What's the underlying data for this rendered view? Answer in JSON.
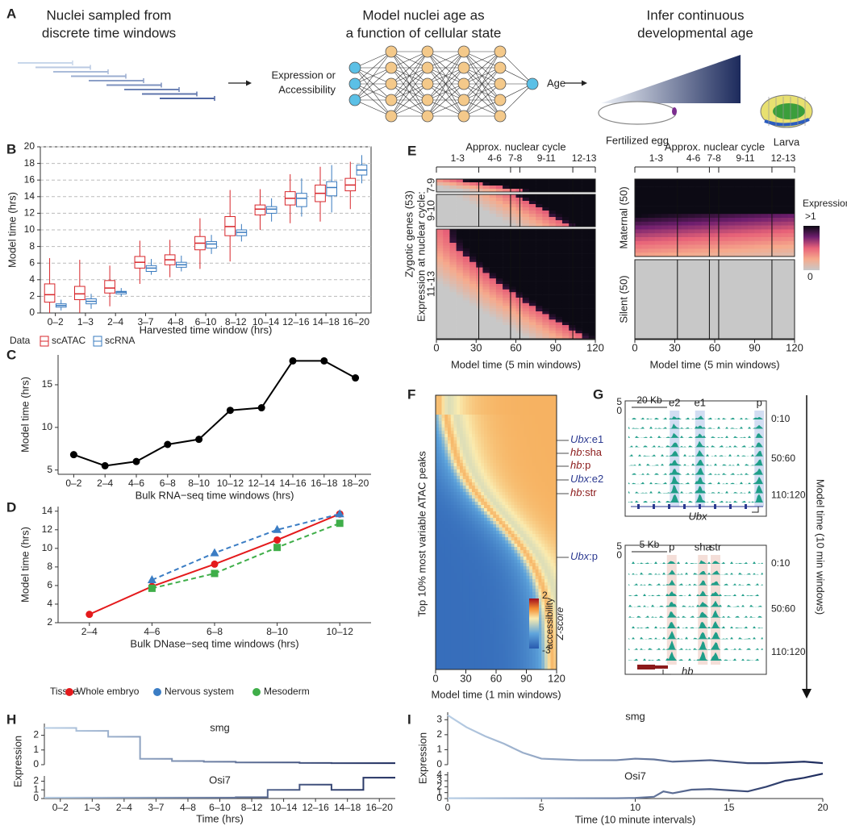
{
  "panel_labels": [
    "A",
    "B",
    "C",
    "D",
    "E",
    "F",
    "G",
    "H",
    "I"
  ],
  "panel_a": {
    "sampling_title": [
      "Nuclei sampled from",
      "discrete time windows"
    ],
    "model_title": [
      "Model nuclei age as",
      "a function of cellular state"
    ],
    "infer_title": [
      "Infer continuous",
      "developmental age"
    ],
    "input_label": [
      "Expression or",
      "Accessibility"
    ],
    "output_label": "Age",
    "start_label": "Fertilized egg",
    "end_label": "Larva"
  },
  "panel_e": {
    "axis_title": "Approx. nuclear cycle",
    "cycles": [
      "1-3",
      "4-6",
      "7-8",
      "9-11",
      "12-13"
    ],
    "cycle_bounds": [
      0,
      32,
      56,
      63,
      103,
      120
    ],
    "zygotic_label": "Zygotic genes (53)",
    "cycle_label": "Expression at nuclear cycle:",
    "zygotic_groups": [
      "7-9",
      "9-10",
      "11-13"
    ],
    "other_groups": [
      "Maternal (50)",
      "Silent (50)"
    ],
    "xlim": [
      0,
      120
    ],
    "xticks": [
      0,
      30,
      60,
      90,
      120
    ],
    "x_label": "Model time (5 min windows)",
    "legend_title": "Expression",
    "legend_max": ">1",
    "legend_min": 0
  },
  "panel_f": {
    "y_label": "Top 10% most variable ATAC peaks",
    "xlim": [
      0,
      120
    ],
    "xticks": [
      0,
      30,
      60,
      90,
      120
    ],
    "x_label": "Model time (1 min windows)",
    "legend_max": 2,
    "legend_min": -3,
    "legend_title": [
      "accessibility",
      "Z-score"
    ],
    "peaks": [
      {
        "gene": "Ubx",
        "element": ":e1"
      },
      {
        "gene": "hb",
        "element": ":sha"
      },
      {
        "gene": "hb",
        "element": ":p"
      },
      {
        "gene": "Ubx",
        "element": ":e2"
      },
      {
        "gene": "hb",
        "element": ":str"
      },
      {
        "gene": "Ubx",
        "element": ":p"
      }
    ]
  },
  "panel_g": {
    "ubx": {
      "scale": "20 Kb",
      "elements": [
        "e2",
        "e1",
        "p"
      ],
      "ymax": 5,
      "ymin": 0,
      "gene": "Ubx"
    },
    "hb": {
      "scale": "5 Kb",
      "elements": [
        "p",
        "sha",
        "str"
      ],
      "ymax": 5,
      "ymin": 0,
      "gene": "hb"
    },
    "times": [
      "0:10",
      "50:60",
      "110:120"
    ],
    "axis_label": "Model time (10 min windows)"
  },
  "chart_data": [
    {
      "type": "box",
      "x_label": "Harvested time window (hrs)",
      "y_label": "Model time (hrs)",
      "legend_title": "Data",
      "categories": [
        "0–2",
        "1–3",
        "2–4",
        "3–7",
        "4–8",
        "6–10",
        "8–12",
        "10–14",
        "12–16",
        "14–18",
        "16–20"
      ],
      "ylim": [
        0,
        20
      ],
      "yticks": [
        0,
        2,
        4,
        6,
        8,
        10,
        12,
        14,
        16,
        18,
        20
      ],
      "grid": true,
      "grid_style": "dashed",
      "series": [
        {
          "name": "scATAC",
          "color": "#d7262b",
          "whisker_low": [
            0,
            0,
            0.8,
            3.5,
            4.3,
            5.3,
            6.2,
            10,
            10.8,
            11,
            12.5
          ],
          "q1": [
            1.3,
            1.6,
            2.4,
            5.4,
            5.8,
            7.6,
            9.3,
            11.8,
            13.0,
            13.4,
            14.7
          ],
          "median": [
            2.2,
            2.3,
            3.0,
            6.1,
            6.4,
            8.4,
            10.4,
            12.5,
            13.8,
            14.4,
            15.4
          ],
          "q3": [
            3.5,
            3.2,
            3.9,
            6.8,
            7.0,
            9.2,
            11.6,
            13.0,
            14.6,
            15.4,
            16.2
          ],
          "whisker_high": [
            6.6,
            6.4,
            5.7,
            8.7,
            8.8,
            11.4,
            14.8,
            14.9,
            16.7,
            17.6,
            18.2
          ]
        },
        {
          "name": "scRNA",
          "color": "#3a7bbf",
          "whisker_low": [
            0.3,
            0.5,
            2.0,
            4.6,
            5.0,
            7.1,
            8.6,
            11.0,
            11.6,
            12.1,
            15.6
          ],
          "q1": [
            0.7,
            1.1,
            2.3,
            5.0,
            5.5,
            7.8,
            9.3,
            12.0,
            12.8,
            14.1,
            16.6
          ],
          "median": [
            0.9,
            1.4,
            2.5,
            5.4,
            5.8,
            8.3,
            9.7,
            12.5,
            13.8,
            15.1,
            17.2
          ],
          "q3": [
            1.1,
            1.7,
            2.6,
            5.7,
            6.1,
            8.6,
            10.0,
            12.8,
            14.4,
            15.8,
            17.8
          ],
          "whisker_high": [
            1.6,
            2.3,
            3.0,
            6.5,
            6.9,
            9.4,
            10.7,
            13.8,
            16.2,
            17.8,
            19.0
          ]
        }
      ]
    },
    {
      "type": "line",
      "x_label": "Bulk RNA−seq time windows (hrs)",
      "y_label": "Model time (hrs)",
      "categories": [
        "0–2",
        "2–4",
        "4–6",
        "6–8",
        "8–10",
        "10–12",
        "12–14",
        "14–16",
        "16–18",
        "18–20"
      ],
      "values": [
        6.8,
        5.5,
        6.0,
        8.0,
        8.6,
        12.0,
        12.3,
        17.8,
        17.8,
        15.8
      ],
      "color": "#000000",
      "marker": "circle",
      "ylim": [
        4.5,
        18.5
      ],
      "yticks": [
        5,
        10,
        15
      ]
    },
    {
      "type": "line",
      "x_label": "Bulk DNase−seq time windows (hrs)",
      "y_label": "Model time (hrs)",
      "legend_title": "Tissue",
      "categories": [
        "2–4",
        "4–6",
        "6–8",
        "8–10",
        "10–12"
      ],
      "ylim": [
        2,
        14.5
      ],
      "yticks": [
        2,
        4,
        6,
        8,
        10,
        12,
        14
      ],
      "series": [
        {
          "name": "Whole embryo",
          "color": "#e41a1c",
          "marker": "circle",
          "dashed": false,
          "values": [
            2.9,
            5.9,
            8.3,
            10.9,
            13.7
          ]
        },
        {
          "name": "Nervous system",
          "color": "#3b7dc4",
          "marker": "triangle",
          "dashed": true,
          "values": [
            null,
            6.6,
            9.5,
            12.0,
            13.7
          ]
        },
        {
          "name": "Mesoderm",
          "color": "#3fae49",
          "marker": "square",
          "dashed": true,
          "values": [
            null,
            5.7,
            7.3,
            10.1,
            12.7
          ]
        }
      ]
    },
    {
      "type": "step",
      "title": "smg",
      "values": [
        2.5,
        2.3,
        1.9,
        0.4,
        0.25,
        0.2,
        0.15,
        0.15,
        0.12,
        0.1,
        0.1
      ],
      "color": [
        "#b9cfe6",
        "#1c2a5c"
      ],
      "ylim": [
        0,
        2.8
      ],
      "yticks": [
        0,
        1,
        2
      ]
    },
    {
      "type": "step",
      "title": "Osi7",
      "y_label": "Expression",
      "x_label": "Time (hrs)",
      "categories": [
        "0–2",
        "1–3",
        "2–4",
        "3–7",
        "4–8",
        "6–10",
        "8–12",
        "10–14",
        "12–16",
        "14–18",
        "16–20"
      ],
      "values": [
        0.1,
        0.1,
        0.1,
        0.1,
        0.1,
        0.1,
        0.15,
        1.0,
        1.6,
        1.0,
        2.4
      ],
      "color": [
        "#b9cfe6",
        "#1c2a5c"
      ],
      "ylim": [
        0,
        2.6
      ],
      "yticks": [
        0,
        1,
        2
      ]
    },
    {
      "type": "line",
      "title": "smg",
      "x": [
        0,
        1,
        2,
        3,
        4,
        5,
        6,
        7,
        8,
        9,
        10,
        11,
        12,
        13,
        14,
        15,
        16,
        17,
        18,
        19,
        20
      ],
      "values": [
        3.3,
        2.5,
        1.9,
        1.4,
        0.8,
        0.4,
        0.35,
        0.3,
        0.3,
        0.3,
        0.4,
        0.35,
        0.2,
        0.25,
        0.3,
        0.2,
        0.1,
        0.1,
        0.15,
        0.2,
        0.1
      ],
      "color": [
        "#b9cfe6",
        "#1c2a5c"
      ],
      "xlim": [
        0,
        20
      ],
      "ylim": [
        0,
        3.5
      ],
      "yticks": [
        0,
        1,
        2,
        3
      ]
    },
    {
      "type": "line",
      "title": "Osi7",
      "y_label": "Expression",
      "x_label": "Time (10 minute intervals)",
      "x": [
        0,
        1,
        2,
        3,
        4,
        5,
        6,
        7,
        8,
        9,
        10,
        11,
        11.5,
        12,
        13,
        14,
        15,
        16,
        17,
        18,
        19,
        20
      ],
      "values": [
        0.05,
        0.05,
        0.05,
        0.05,
        0.05,
        0.05,
        0.05,
        0.05,
        0.05,
        0.05,
        0.1,
        0.3,
        1.2,
        0.9,
        1.5,
        1.6,
        1.4,
        1.2,
        2.0,
        3.0,
        3.5,
        4.2
      ],
      "color": [
        "#b9cfe6",
        "#1c2a5c"
      ],
      "xlim": [
        0,
        20
      ],
      "xticks": [
        0,
        5,
        10,
        15,
        20
      ],
      "ylim": [
        0,
        4.5
      ],
      "yticks": [
        0,
        1,
        2,
        3,
        4
      ]
    }
  ]
}
